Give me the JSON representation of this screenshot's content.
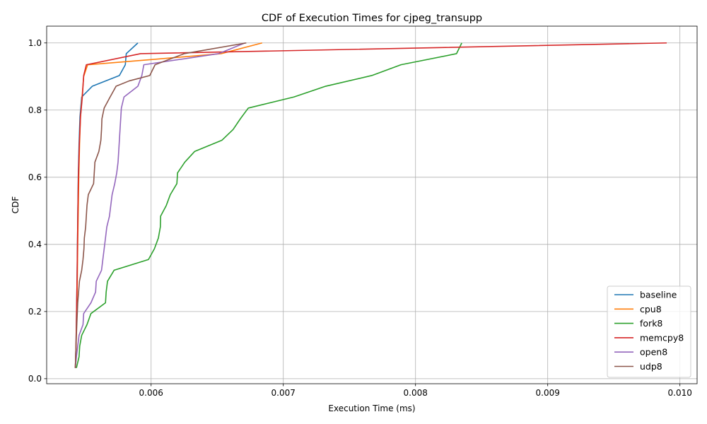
{
  "chart_data": {
    "type": "line",
    "title": "CDF of Execution Times for cjpeg_transupp",
    "xlabel": "Execution Time (ms)",
    "ylabel": "CDF",
    "xlim": [
      0.00521,
      0.01013
    ],
    "ylim": [
      -0.015,
      1.05
    ],
    "grid": true,
    "legend_position": "lower-right",
    "xticks": [
      0.006,
      0.007,
      0.008,
      0.009,
      0.01
    ],
    "xtick_labels": [
      "0.006",
      "0.007",
      "0.008",
      "0.009",
      "0.010"
    ],
    "yticks": [
      0.0,
      0.2,
      0.4,
      0.6,
      0.8,
      1.0
    ],
    "ytick_labels": [
      "0.0",
      "0.2",
      "0.4",
      "0.6",
      "0.8",
      "1.0"
    ],
    "series": [
      {
        "name": "baseline",
        "color": "#1f77b4",
        "points": [
          [
            0.005427,
            0.032
          ],
          [
            0.005432,
            0.1
          ],
          [
            0.005436,
            0.2
          ],
          [
            0.00544,
            0.3
          ],
          [
            0.005443,
            0.4
          ],
          [
            0.005446,
            0.5
          ],
          [
            0.005449,
            0.6
          ],
          [
            0.005455,
            0.7
          ],
          [
            0.005462,
            0.78
          ],
          [
            0.005475,
            0.839
          ],
          [
            0.005555,
            0.871
          ],
          [
            0.00576,
            0.903
          ],
          [
            0.005805,
            0.935
          ],
          [
            0.005812,
            0.968
          ],
          [
            0.0059,
            1.0
          ]
        ]
      },
      {
        "name": "cpu8",
        "color": "#ff7f0e",
        "points": [
          [
            0.005427,
            0.032
          ],
          [
            0.005433,
            0.1
          ],
          [
            0.005438,
            0.2
          ],
          [
            0.005442,
            0.3
          ],
          [
            0.005445,
            0.4
          ],
          [
            0.005449,
            0.5
          ],
          [
            0.005453,
            0.6
          ],
          [
            0.005459,
            0.7
          ],
          [
            0.005466,
            0.78
          ],
          [
            0.005478,
            0.84
          ],
          [
            0.00549,
            0.9
          ],
          [
            0.00552,
            0.935
          ],
          [
            0.00605,
            0.952
          ],
          [
            0.00653,
            0.968
          ],
          [
            0.00684,
            1.0
          ]
        ]
      },
      {
        "name": "fork8",
        "color": "#2ca02c",
        "points": [
          [
            0.005435,
            0.032
          ],
          [
            0.005455,
            0.065
          ],
          [
            0.00546,
            0.097
          ],
          [
            0.005475,
            0.129
          ],
          [
            0.005515,
            0.161
          ],
          [
            0.005545,
            0.194
          ],
          [
            0.005655,
            0.226
          ],
          [
            0.00566,
            0.258
          ],
          [
            0.00567,
            0.29
          ],
          [
            0.00572,
            0.323
          ],
          [
            0.00598,
            0.355
          ],
          [
            0.006025,
            0.387
          ],
          [
            0.006055,
            0.419
          ],
          [
            0.00607,
            0.452
          ],
          [
            0.006072,
            0.484
          ],
          [
            0.006115,
            0.516
          ],
          [
            0.006145,
            0.548
          ],
          [
            0.006195,
            0.581
          ],
          [
            0.0062,
            0.613
          ],
          [
            0.006255,
            0.645
          ],
          [
            0.00633,
            0.677
          ],
          [
            0.006535,
            0.71
          ],
          [
            0.00662,
            0.742
          ],
          [
            0.006675,
            0.774
          ],
          [
            0.006735,
            0.806
          ],
          [
            0.00708,
            0.839
          ],
          [
            0.00732,
            0.871
          ],
          [
            0.00767,
            0.903
          ],
          [
            0.00789,
            0.935
          ],
          [
            0.00831,
            0.968
          ],
          [
            0.00835,
            1.0
          ]
        ]
      },
      {
        "name": "memcpy8",
        "color": "#d62728",
        "points": [
          [
            0.005427,
            0.032
          ],
          [
            0.005432,
            0.1
          ],
          [
            0.005436,
            0.2
          ],
          [
            0.00544,
            0.3
          ],
          [
            0.005443,
            0.4
          ],
          [
            0.005446,
            0.5
          ],
          [
            0.00545,
            0.6
          ],
          [
            0.005457,
            0.7
          ],
          [
            0.005466,
            0.78
          ],
          [
            0.00548,
            0.84
          ],
          [
            0.00549,
            0.903
          ],
          [
            0.00551,
            0.935
          ],
          [
            0.00592,
            0.968
          ],
          [
            0.0099,
            1.0
          ]
        ]
      },
      {
        "name": "open8",
        "color": "#9467bd",
        "points": [
          [
            0.005427,
            0.032
          ],
          [
            0.005435,
            0.065
          ],
          [
            0.005455,
            0.129
          ],
          [
            0.005485,
            0.161
          ],
          [
            0.00549,
            0.194
          ],
          [
            0.005545,
            0.226
          ],
          [
            0.00558,
            0.258
          ],
          [
            0.005585,
            0.29
          ],
          [
            0.005625,
            0.323
          ],
          [
            0.005635,
            0.355
          ],
          [
            0.005645,
            0.387
          ],
          [
            0.005655,
            0.419
          ],
          [
            0.005665,
            0.452
          ],
          [
            0.005685,
            0.484
          ],
          [
            0.005695,
            0.516
          ],
          [
            0.005705,
            0.548
          ],
          [
            0.005725,
            0.581
          ],
          [
            0.00574,
            0.613
          ],
          [
            0.00575,
            0.645
          ],
          [
            0.005755,
            0.677
          ],
          [
            0.00576,
            0.71
          ],
          [
            0.005765,
            0.742
          ],
          [
            0.00577,
            0.774
          ],
          [
            0.005775,
            0.806
          ],
          [
            0.005795,
            0.839
          ],
          [
            0.0059,
            0.871
          ],
          [
            0.00593,
            0.903
          ],
          [
            0.005945,
            0.935
          ],
          [
            0.00651,
            0.968
          ],
          [
            0.00671,
            1.0
          ]
        ]
      },
      {
        "name": "udp8",
        "color": "#8c564b",
        "points": [
          [
            0.005427,
            0.032
          ],
          [
            0.005432,
            0.1
          ],
          [
            0.005438,
            0.161
          ],
          [
            0.005445,
            0.226
          ],
          [
            0.005458,
            0.29
          ],
          [
            0.005475,
            0.323
          ],
          [
            0.005485,
            0.355
          ],
          [
            0.005492,
            0.387
          ],
          [
            0.005495,
            0.419
          ],
          [
            0.005505,
            0.452
          ],
          [
            0.00551,
            0.484
          ],
          [
            0.005515,
            0.516
          ],
          [
            0.005525,
            0.548
          ],
          [
            0.005565,
            0.581
          ],
          [
            0.00557,
            0.613
          ],
          [
            0.005575,
            0.645
          ],
          [
            0.005605,
            0.677
          ],
          [
            0.00562,
            0.71
          ],
          [
            0.005625,
            0.742
          ],
          [
            0.005628,
            0.774
          ],
          [
            0.005645,
            0.806
          ],
          [
            0.00569,
            0.839
          ],
          [
            0.005735,
            0.871
          ],
          [
            0.005835,
            0.887
          ],
          [
            0.00599,
            0.903
          ],
          [
            0.00603,
            0.935
          ],
          [
            0.00625,
            0.968
          ],
          [
            0.00672,
            1.0
          ]
        ]
      }
    ]
  }
}
